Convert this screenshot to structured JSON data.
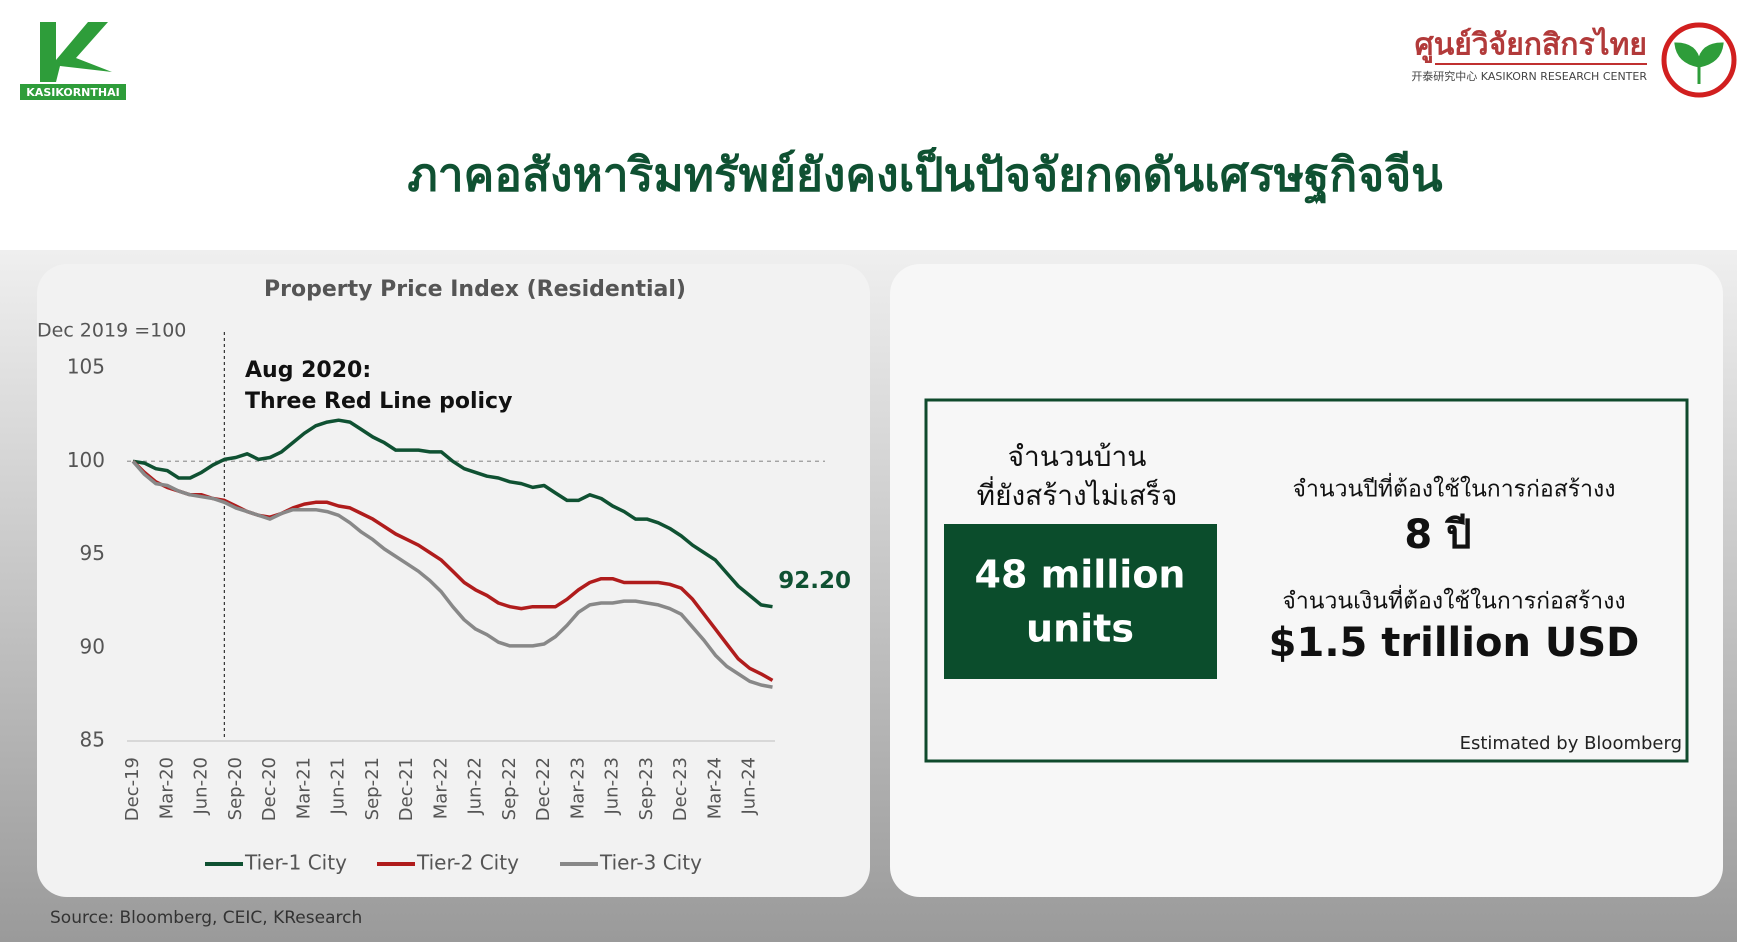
{
  "header": {
    "left_logo": "KASIKORNTHAI",
    "right_logo_thai": "ศูนย์วิจัยกสิกรไทย",
    "right_logo_sub": "开泰研究中心 KASIKORN RESEARCH CENTER",
    "title": "ภาคอสังหาริมทรัพย์ยังคงเป็นปัจจัยกดดันเศรษฐกิจจีน"
  },
  "chart_data": {
    "type": "line",
    "title": "Property Price Index (Residential)",
    "y_label": "Dec 2019 =100",
    "annotation": [
      "Aug 2020:",
      "Three Red Line policy"
    ],
    "reference_line": 100,
    "categories": [
      "Dec-19",
      null,
      null,
      "Mar-20",
      null,
      null,
      "Jun-20",
      null,
      null,
      "Sep-20",
      null,
      null,
      "Dec-20",
      null,
      null,
      "Mar-21",
      null,
      null,
      "Jun-21",
      null,
      null,
      "Sep-21",
      null,
      null,
      "Dec-21",
      null,
      null,
      "Mar-22",
      null,
      null,
      "Jun-22",
      null,
      null,
      "Sep-22",
      null,
      null,
      "Dec-22",
      null,
      null,
      "Mar-23",
      null,
      null,
      "Jun-23",
      null,
      null,
      "Sep-23",
      null,
      null,
      "Dec-23",
      null,
      null,
      "Mar-24",
      null,
      null,
      "Jun-24",
      null,
      null
    ],
    "ylim": [
      85,
      105
    ],
    "yticks": [
      85,
      90,
      95,
      100,
      105
    ],
    "series": [
      {
        "name": "Tier-1 City",
        "color": "#0f5132",
        "values": [
          100.0,
          99.9,
          99.6,
          99.5,
          99.1,
          99.1,
          99.4,
          99.8,
          100.1,
          100.2,
          100.4,
          100.1,
          100.2,
          100.5,
          101.0,
          101.5,
          101.9,
          102.1,
          102.2,
          102.1,
          101.7,
          101.3,
          101.0,
          100.6,
          100.6,
          100.6,
          100.5,
          100.5,
          100.0,
          99.6,
          99.4,
          99.2,
          99.1,
          98.9,
          98.8,
          98.6,
          98.7,
          98.3,
          97.9,
          97.9,
          98.2,
          98.0,
          97.6,
          97.3,
          96.9,
          96.9,
          96.7,
          96.4,
          96.0,
          95.5,
          95.1,
          94.7,
          94.0,
          93.3,
          92.8,
          92.3,
          92.2
        ],
        "value_labels": [
          null,
          null,
          null,
          null,
          null,
          null,
          null,
          null,
          null,
          null,
          null,
          null,
          null,
          null,
          null,
          null,
          null,
          null,
          null,
          null,
          null,
          null,
          null,
          null,
          null,
          null,
          null,
          null,
          null,
          null,
          null,
          null,
          null,
          null,
          null,
          null,
          null,
          null,
          null,
          null,
          null,
          null,
          null,
          null,
          null,
          null,
          null,
          null,
          null,
          null,
          null,
          null,
          null,
          null,
          null,
          null,
          "92.20"
        ]
      },
      {
        "name": "Tier-2 City",
        "color": "#b01c1c",
        "values": [
          100.0,
          99.4,
          98.9,
          98.6,
          98.4,
          98.2,
          98.2,
          98.0,
          97.9,
          97.6,
          97.3,
          97.1,
          97.0,
          97.2,
          97.5,
          97.7,
          97.8,
          97.8,
          97.6,
          97.5,
          97.2,
          96.9,
          96.5,
          96.1,
          95.8,
          95.5,
          95.1,
          94.7,
          94.1,
          93.5,
          93.1,
          92.8,
          92.4,
          92.2,
          92.1,
          92.2,
          92.2,
          92.2,
          92.6,
          93.1,
          93.5,
          93.7,
          93.7,
          93.5,
          93.5,
          93.5,
          93.5,
          93.4,
          93.2,
          92.6,
          91.8,
          91.0,
          90.2,
          89.4,
          88.9,
          88.6,
          88.25
        ]
      },
      {
        "name": "Tier-3 City",
        "color": "#888888",
        "values": [
          100.0,
          99.3,
          98.8,
          98.7,
          98.4,
          98.2,
          98.1,
          98.0,
          97.8,
          97.5,
          97.3,
          97.1,
          96.9,
          97.2,
          97.4,
          97.4,
          97.4,
          97.3,
          97.1,
          96.7,
          96.2,
          95.8,
          95.3,
          94.9,
          94.5,
          94.1,
          93.6,
          93.0,
          92.2,
          91.5,
          91.0,
          90.7,
          90.3,
          90.1,
          90.1,
          90.1,
          90.2,
          90.6,
          91.2,
          91.9,
          92.3,
          92.4,
          92.4,
          92.5,
          92.5,
          92.4,
          92.3,
          92.1,
          91.8,
          91.1,
          90.4,
          89.6,
          89.0,
          88.6,
          88.2,
          88.0,
          87.89
        ]
      }
    ]
  },
  "info_panel": {
    "units_label": [
      "จำนวนบ้าน",
      "ที่ยังสร้างไม่เสร็จ"
    ],
    "units_value": [
      "48 million",
      "units"
    ],
    "years_label": "จำนวนปีที่ต้องใช้ในการก่อสร้างง",
    "years_value": "8 ปี",
    "money_label": "จำนวนเงินที่ต้องใช้ในการก่อสร้างง",
    "money_value": "$1.5 trillion USD",
    "note": "Estimated by Bloomberg"
  },
  "source": "Source: Bloomberg, CEIC, KResearch"
}
